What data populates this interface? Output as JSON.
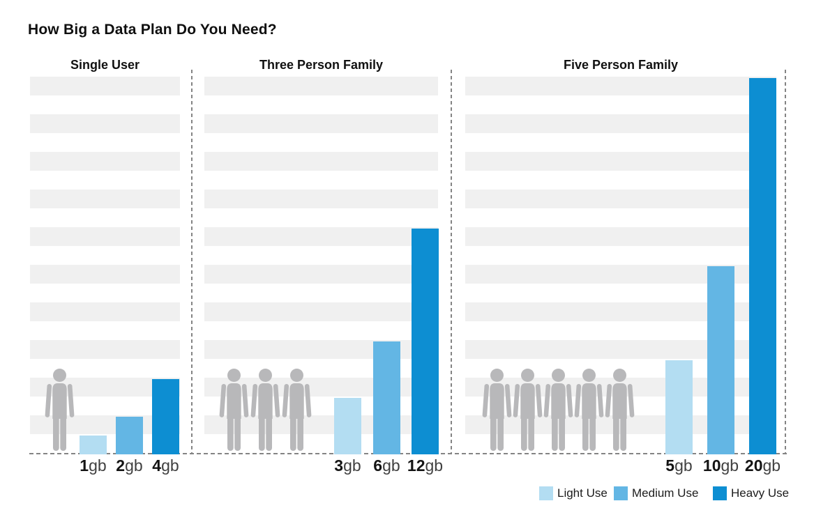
{
  "title": "How Big a Data Plan Do You Need?",
  "colors": {
    "light": "#b3ddf2",
    "medium": "#63b6e4",
    "heavy": "#0d8ed2",
    "person": "#b8b8ba",
    "stripe": "#f0f0f0",
    "dash": "#848484"
  },
  "legend": [
    {
      "label": "Light Use",
      "use": "light"
    },
    {
      "label": "Medium Use",
      "use": "medium"
    },
    {
      "label": "Heavy Use",
      "use": "heavy"
    }
  ],
  "chart_data": {
    "type": "bar",
    "title": "How Big a Data Plan Do You Need?",
    "value_unit": "gb",
    "ylim": [
      0,
      20
    ],
    "grid": "horizontal-zebra-stripes",
    "legend_position": "bottom-right",
    "panels": [
      {
        "title": "Single User",
        "persons": 1,
        "bars": [
          {
            "value": 1,
            "unit": "gb",
            "series": "Light Use",
            "use": "light"
          },
          {
            "value": 2,
            "unit": "gb",
            "series": "Medium Use",
            "use": "medium"
          },
          {
            "value": 4,
            "unit": "gb",
            "series": "Heavy Use",
            "use": "heavy"
          }
        ]
      },
      {
        "title": "Three Person Family",
        "persons": 3,
        "bars": [
          {
            "value": 3,
            "unit": "gb",
            "series": "Light Use",
            "use": "light"
          },
          {
            "value": 6,
            "unit": "gb",
            "series": "Medium Use",
            "use": "medium"
          },
          {
            "value": 12,
            "unit": "gb",
            "series": "Heavy Use",
            "use": "heavy"
          }
        ]
      },
      {
        "title": "Five Person Family",
        "persons": 5,
        "bars": [
          {
            "value": 5,
            "unit": "gb",
            "series": "Light Use",
            "use": "light"
          },
          {
            "value": 10,
            "unit": "gb",
            "series": "Medium Use",
            "use": "medium"
          },
          {
            "value": 20,
            "unit": "gb",
            "series": "Heavy Use",
            "use": "heavy"
          }
        ]
      }
    ]
  }
}
